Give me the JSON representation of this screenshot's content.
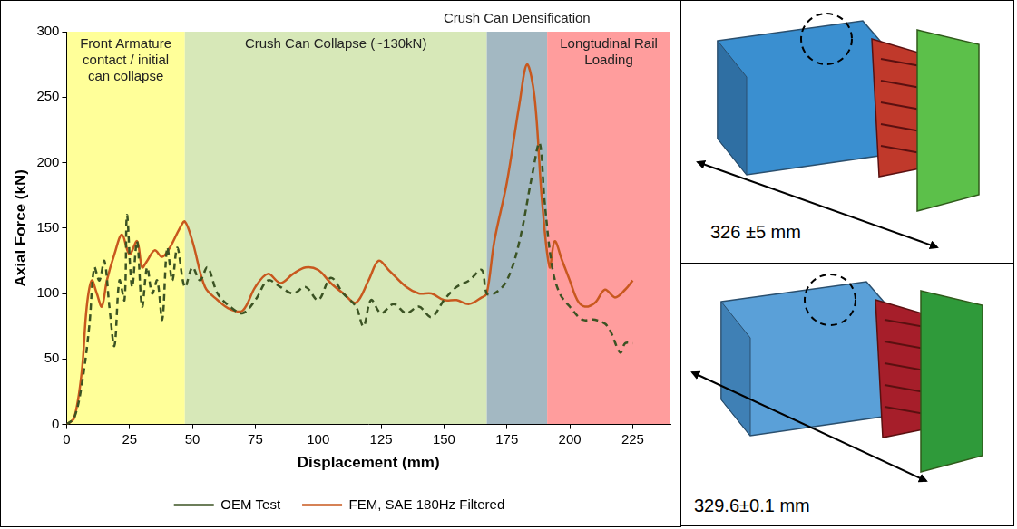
{
  "chart_data": {
    "type": "line",
    "x_label": "Displacement (mm)",
    "y_label": "Axial Force (kN)",
    "xlim": [
      0,
      240
    ],
    "xticks": [
      0,
      25,
      50,
      75,
      100,
      125,
      150,
      175,
      200,
      225
    ],
    "ylim": [
      0,
      300
    ],
    "yticks": [
      0,
      50,
      100,
      150,
      200,
      250,
      300
    ],
    "grid": false,
    "legend": "bottom",
    "regions": [
      {
        "label": "Front Armature contact / initial can collapse",
        "start": 0,
        "end": 47,
        "color": "#ffff99"
      },
      {
        "label": "Crush Can Collapse (~130kN)",
        "start": 47,
        "end": 167,
        "color": "#d7e8b8"
      },
      {
        "label": "Crush Can Densification",
        "start": 167,
        "end": 191,
        "color": "#a3b8c2"
      },
      {
        "label": "Longtudinal Rail Loading",
        "start": 191,
        "end": 240,
        "color": "#ff9d9d"
      }
    ],
    "series": [
      {
        "name": "OEM Test",
        "color": "#3b5323",
        "line_style": "dashed",
        "x": [
          0,
          3,
          6,
          9,
          11,
          13,
          15,
          17,
          19,
          21,
          23,
          24,
          26,
          28,
          30,
          32,
          34,
          36,
          38,
          40,
          42,
          44,
          47,
          50,
          53,
          56,
          60,
          65,
          70,
          75,
          80,
          85,
          90,
          95,
          100,
          105,
          110,
          115,
          118,
          121,
          125,
          130,
          135,
          140,
          145,
          150,
          155,
          160,
          165,
          167,
          170,
          175,
          180,
          185,
          188,
          190,
          193,
          196,
          200,
          205,
          210,
          215,
          220,
          222,
          225
        ],
        "values": [
          0,
          5,
          30,
          75,
          120,
          110,
          125,
          90,
          60,
          110,
          95,
          160,
          105,
          140,
          90,
          120,
          100,
          110,
          80,
          135,
          110,
          135,
          105,
          120,
          110,
          120,
          100,
          90,
          85,
          95,
          110,
          105,
          100,
          105,
          95,
          112,
          100,
          90,
          75,
          95,
          85,
          92,
          85,
          90,
          82,
          95,
          105,
          110,
          118,
          100,
          100,
          110,
          140,
          190,
          215,
          170,
          120,
          100,
          90,
          80,
          80,
          75,
          55,
          62,
          62
        ]
      },
      {
        "name": "FEM, SAE 180Hz Filtered",
        "color": "#c8581e",
        "line_style": "solid",
        "x": [
          0,
          3,
          6,
          8,
          10,
          12,
          14,
          16,
          19,
          22,
          25,
          28,
          30,
          32,
          35,
          38,
          41,
          45,
          47,
          50,
          55,
          60,
          65,
          70,
          75,
          80,
          85,
          90,
          95,
          100,
          105,
          110,
          115,
          120,
          124,
          128,
          135,
          140,
          145,
          150,
          155,
          160,
          165,
          167,
          170,
          175,
          180,
          183,
          186,
          189,
          192,
          194,
          197,
          200,
          203,
          206,
          210,
          214,
          218,
          222,
          225
        ],
        "values": [
          0,
          5,
          40,
          90,
          110,
          100,
          90,
          110,
          130,
          145,
          130,
          140,
          120,
          125,
          133,
          128,
          135,
          150,
          155,
          140,
          105,
          95,
          88,
          87,
          105,
          115,
          108,
          115,
          120,
          118,
          108,
          100,
          93,
          110,
          125,
          118,
          105,
          100,
          100,
          95,
          95,
          92,
          97,
          100,
          140,
          185,
          245,
          275,
          250,
          170,
          120,
          140,
          125,
          110,
          95,
          90,
          93,
          103,
          97,
          103,
          110
        ]
      }
    ]
  },
  "images": [
    {
      "caption": "326 ±5 mm"
    },
    {
      "caption": "329.6±0.1 mm"
    }
  ]
}
